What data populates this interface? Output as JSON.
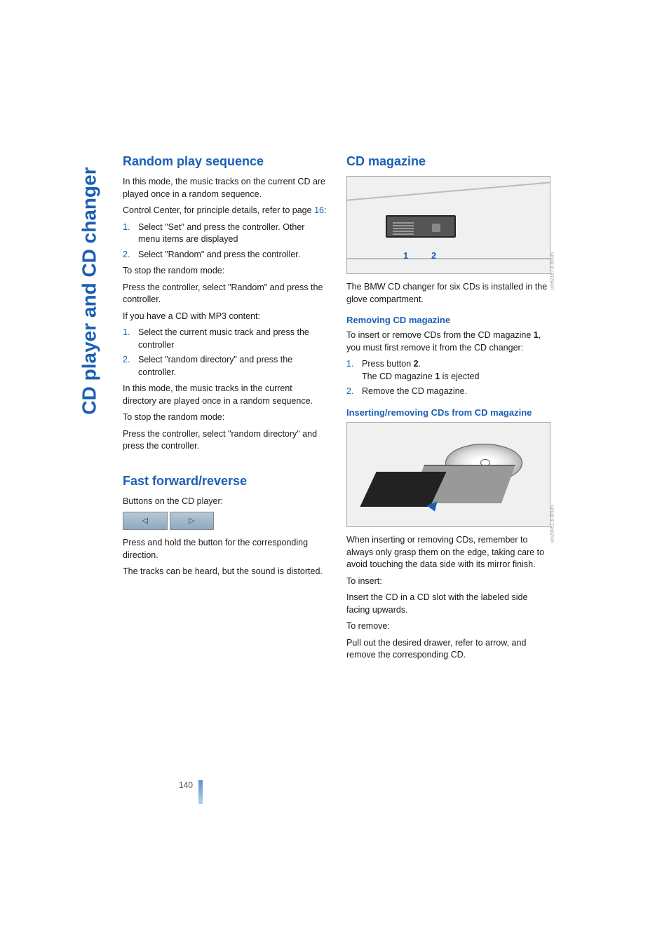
{
  "sidebar": {
    "title": "CD player and CD changer"
  },
  "col1": {
    "h1": "Random play sequence",
    "p1": "In this mode, the music tracks on the current CD are played once in a random sequence.",
    "p2a": "Control Center, for principle details, refer to page ",
    "p2link": "16",
    "p2b": ":",
    "step1": "Select \"Set\" and press the controller. Other menu items are displayed",
    "step2": "Select \"Random\" and press the controller.",
    "p3": "To stop the random mode:",
    "p4": "Press the controller, select \"Random\" and press the controller.",
    "p5": "If you have a CD with MP3 content:",
    "step3": "Select the current music track and press the controller",
    "step4": "Select \"random directory\" and press the controller.",
    "p6": "In this mode, the music tracks in the current directory are played once in a random sequence.",
    "p7": "To stop the random mode:",
    "p8": "Press the controller, select \"random directory\" and press the controller.",
    "h2": "Fast forward/reverse",
    "p9": "Buttons on the CD player:",
    "btn_left": "◁",
    "btn_right": "▷",
    "p10": "Press and hold the button for the corresponding direction.",
    "p11": "The tracks can be heard, but the sound is distorted."
  },
  "col2": {
    "h1": "CD magazine",
    "fig1": {
      "label1": "1",
      "label2": "2",
      "wm": "um52187,b.tif/um"
    },
    "p1": "The BMW CD changer for six CDs is installed in the glove compartment.",
    "h2": "Removing CD magazine",
    "p2a": "To insert or remove CDs from the CD magazine ",
    "p2b": "1",
    "p2c": ", you must first remove it from the CD changer:",
    "step1a": "Press button ",
    "step1b": "2",
    "step1c": ".",
    "step1d": "The CD magazine ",
    "step1e": "1",
    "step1f": " is ejected",
    "step2": "Remove the CD magazine.",
    "h3": "Inserting/removing CDs from CD magazine",
    "fig2": {
      "wm": "um29951,b.tif/um"
    },
    "p3": "When inserting or removing CDs, remember to always only grasp them on the edge, taking care to avoid touching the data side with its mirror finish.",
    "p4": "To insert:",
    "p5": "Insert the CD in a CD slot with the labeled side facing upwards.",
    "p6": "To remove:",
    "p7": "Pull out the desired drawer, refer to arrow, and remove the corresponding CD."
  },
  "list": {
    "n1": "1.",
    "n2": "2."
  },
  "page": {
    "num": "140"
  },
  "colors": {
    "heading": "#1a5fb4",
    "text": "#1a1a1a",
    "bg": "#ffffff"
  }
}
